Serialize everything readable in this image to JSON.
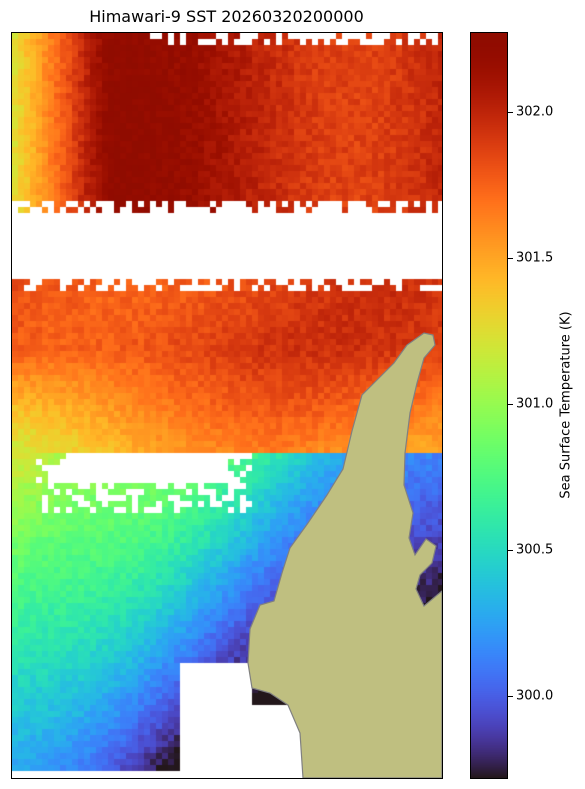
{
  "title": "Himawari-9 SST 20260320200000",
  "colorbar": {
    "label": "Sea Surface Temperature (K)",
    "min": 299.72,
    "max": 302.27,
    "colormap": "turbo",
    "ticks": [
      {
        "value": 300.0,
        "label": "300.0"
      },
      {
        "value": 300.5,
        "label": "300.5"
      },
      {
        "value": 301.0,
        "label": "301.0"
      },
      {
        "value": 301.5,
        "label": "301.5"
      },
      {
        "value": 302.0,
        "label": "302.0"
      }
    ]
  },
  "chart_data": {
    "type": "heatmap",
    "title": "Himawari-9 SST 20260320200000",
    "colorbar_label": "Sea Surface Temperature (K)",
    "value_range": [
      299.72,
      302.27
    ],
    "colors": {
      "land": "#bfbf80",
      "coast": "#808080",
      "missing": "#ffffff"
    },
    "regions": [
      {
        "name": "north band",
        "rows": [
          "0.02",
          "0.23"
        ],
        "approx_value": 302.1
      },
      {
        "name": "middle band",
        "rows": [
          "0.33",
          "0.55"
        ],
        "approx_value": 301.8
      },
      {
        "name": "south-west area",
        "rows": [
          "0.60",
          "0.98"
        ],
        "approx_value": 300.6
      }
    ]
  }
}
